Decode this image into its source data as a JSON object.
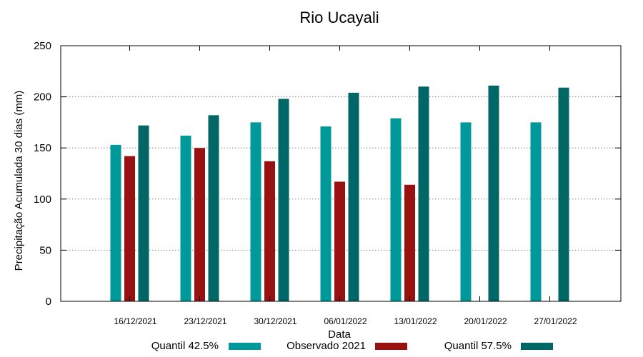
{
  "chart_data": {
    "type": "bar",
    "title": "Rio Ucayali",
    "xlabel": "Data",
    "ylabel": "Precipitação Acumulada 30 dias (mm)",
    "ylim": [
      0,
      250
    ],
    "yticks": [
      0,
      50,
      100,
      150,
      200,
      250
    ],
    "grid": true,
    "legend_position": "bottom",
    "categories": [
      "16/12/2021",
      "23/12/2021",
      "30/12/2021",
      "06/01/2022",
      "13/01/2022",
      "20/01/2022",
      "27/01/2022"
    ],
    "series": [
      {
        "name": "Quantil 42.5%",
        "color": "#009999",
        "values": [
          153,
          162,
          175,
          171,
          179,
          175,
          175
        ]
      },
      {
        "name": "Observado 2021",
        "color": "#991111",
        "values": [
          142,
          150,
          137,
          117,
          114,
          null,
          null
        ]
      },
      {
        "name": "Quantil 57.5%",
        "color": "#006666",
        "values": [
          172,
          182,
          198,
          204,
          210,
          211,
          209
        ]
      }
    ]
  }
}
